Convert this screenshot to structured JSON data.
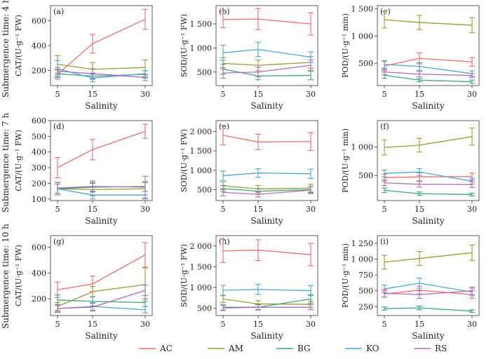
{
  "figure": {
    "row_labels": [
      "Submergence time: 4 h",
      "Submergence time: 7 h",
      "Submergence time: 10 h"
    ]
  },
  "legend": {
    "items": [
      {
        "name": "AC",
        "color": "#f26b6b"
      },
      {
        "name": "AM",
        "color": "#9b9b2f"
      },
      {
        "name": "BG",
        "color": "#3aa874"
      },
      {
        "name": "KO",
        "color": "#4aa6d6"
      },
      {
        "name": "RS",
        "color": "#b06bbd"
      }
    ]
  },
  "chart_data": [
    {
      "panel": "(a)",
      "type": "line",
      "x": [
        5,
        15,
        30
      ],
      "xlabel": "Salinity",
      "ylabel": "CAT/(U·g⁻¹ FW)",
      "ylim": [
        80,
        720
      ],
      "yticks": [
        200,
        400,
        600
      ],
      "ytick_labels": [
        "200",
        "400",
        "600"
      ],
      "series": [
        {
          "name": "AC",
          "values": [
            170,
            415,
            610
          ],
          "err": [
            40,
            75,
            80
          ]
        },
        {
          "name": "AM",
          "values": [
            250,
            210,
            225
          ],
          "err": [
            70,
            55,
            60
          ]
        },
        {
          "name": "BG",
          "values": [
            175,
            155,
            170
          ],
          "err": [
            30,
            25,
            30
          ]
        },
        {
          "name": "KO",
          "values": [
            215,
            140,
            175
          ],
          "err": [
            65,
            30,
            25
          ]
        },
        {
          "name": "RS",
          "values": [
            195,
            175,
            145
          ],
          "err": [
            30,
            40,
            25
          ]
        }
      ]
    },
    {
      "panel": "(b)",
      "type": "line",
      "x": [
        5,
        15,
        30
      ],
      "xlabel": "",
      "ylabel": "SOD/(U·g⁻¹ FW)",
      "ylim": [
        220,
        1880
      ],
      "yticks": [
        500,
        1000,
        1500
      ],
      "ytick_labels": [
        "500",
        "1 000",
        "1 500"
      ],
      "series": [
        {
          "name": "AC",
          "values": [
            1590,
            1600,
            1500
          ],
          "err": [
            170,
            220,
            230
          ]
        },
        {
          "name": "AM",
          "values": [
            680,
            640,
            700
          ],
          "err": [
            120,
            110,
            120
          ]
        },
        {
          "name": "BG",
          "values": [
            560,
            420,
            430
          ],
          "err": [
            100,
            80,
            90
          ]
        },
        {
          "name": "KO",
          "values": [
            900,
            970,
            810
          ],
          "err": [
            160,
            150,
            110
          ]
        },
        {
          "name": "RS",
          "values": [
            480,
            500,
            640
          ],
          "err": [
            110,
            100,
            110
          ]
        }
      ]
    },
    {
      "panel": "(c)",
      "type": "line",
      "x": [
        5,
        15,
        30
      ],
      "xlabel": "",
      "ylabel": "POD/(U·g⁻¹ min)",
      "ylim": [
        90,
        1560
      ],
      "yticks": [
        500,
        1000,
        1500
      ],
      "ytick_labels": [
        "500",
        "1 000",
        "1 500"
      ],
      "series": [
        {
          "name": "AC",
          "values": [
            450,
            590,
            525
          ],
          "err": [
            80,
            100,
            80
          ]
        },
        {
          "name": "AM",
          "values": [
            1300,
            1250,
            1200
          ],
          "err": [
            150,
            130,
            140
          ]
        },
        {
          "name": "BG",
          "values": [
            280,
            190,
            160
          ],
          "err": [
            60,
            30,
            30
          ]
        },
        {
          "name": "KO",
          "values": [
            480,
            440,
            310
          ],
          "err": [
            70,
            70,
            50
          ]
        },
        {
          "name": "RS",
          "values": [
            340,
            300,
            275
          ],
          "err": [
            50,
            50,
            40
          ]
        }
      ]
    },
    {
      "panel": "(d)",
      "type": "line",
      "x": [
        5,
        15,
        30
      ],
      "xlabel": "",
      "ylabel": "CAT/(U·g⁻¹ FW)",
      "ylim": [
        90,
        600
      ],
      "yticks": [
        100,
        200,
        300,
        400,
        500,
        600
      ],
      "ytick_labels": [
        "100",
        "200",
        "300",
        "400",
        "500",
        "600"
      ],
      "series": [
        {
          "name": "AC",
          "values": [
            300,
            415,
            532
          ],
          "err": [
            65,
            65,
            45
          ]
        },
        {
          "name": "AM",
          "values": [
            165,
            160,
            165
          ],
          "err": [
            40,
            40,
            40
          ]
        },
        {
          "name": "BG",
          "values": [
            165,
            175,
            180
          ],
          "err": [
            30,
            30,
            30
          ]
        },
        {
          "name": "KO",
          "values": [
            165,
            125,
            125
          ],
          "err": [
            30,
            25,
            25
          ]
        },
        {
          "name": "RS",
          "values": [
            170,
            180,
            175
          ],
          "err": [
            35,
            35,
            70
          ]
        }
      ]
    },
    {
      "panel": "(e)",
      "type": "line",
      "x": [
        5,
        15,
        30
      ],
      "xlabel": "",
      "ylabel": "SOD/(U·g⁻¹ FW)",
      "ylim": [
        220,
        2280
      ],
      "yticks": [
        500,
        1000,
        1500,
        2000
      ],
      "ytick_labels": [
        "500",
        "1 000",
        "1 500",
        "2 000"
      ],
      "series": [
        {
          "name": "AC",
          "values": [
            1900,
            1730,
            1740
          ],
          "err": [
            250,
            200,
            230
          ]
        },
        {
          "name": "AM",
          "values": [
            600,
            520,
            540
          ],
          "err": [
            100,
            90,
            100
          ]
        },
        {
          "name": "BG",
          "values": [
            530,
            460,
            500
          ],
          "err": [
            80,
            70,
            80
          ]
        },
        {
          "name": "KO",
          "values": [
            860,
            930,
            910
          ],
          "err": [
            120,
            110,
            120
          ]
        },
        {
          "name": "RS",
          "values": [
            430,
            380,
            490
          ],
          "err": [
            90,
            70,
            90
          ]
        }
      ]
    },
    {
      "panel": "(f)",
      "type": "line",
      "x": [
        5,
        15,
        30
      ],
      "xlabel": "",
      "ylabel": "POD/(U·g⁻¹ min)",
      "ylim": [
        60,
        1460
      ],
      "yticks": [
        500,
        1000
      ],
      "ytick_labels": [
        "500",
        "1 000"
      ],
      "series": [
        {
          "name": "AC",
          "values": [
            460,
            475,
            480
          ],
          "err": [
            60,
            70,
            60
          ]
        },
        {
          "name": "AM",
          "values": [
            990,
            1030,
            1180
          ],
          "err": [
            130,
            120,
            150
          ]
        },
        {
          "name": "BG",
          "values": [
            240,
            180,
            165
          ],
          "err": [
            40,
            30,
            25
          ]
        },
        {
          "name": "KO",
          "values": [
            535,
            560,
            400
          ],
          "err": [
            60,
            60,
            50
          ]
        },
        {
          "name": "RS",
          "values": [
            370,
            345,
            340
          ],
          "err": [
            50,
            50,
            50
          ]
        }
      ]
    },
    {
      "panel": "(g)",
      "type": "line",
      "x": [
        5,
        15,
        30
      ],
      "xlabel": "",
      "ylabel": "CAT/(U·g⁻¹ FW)",
      "ylim": [
        70,
        690
      ],
      "yticks": [
        200,
        400,
        600
      ],
      "ytick_labels": [
        "200",
        "400",
        "600"
      ],
      "series": [
        {
          "name": "AC",
          "values": [
            270,
            315,
            540
          ],
          "err": [
            60,
            60,
            95
          ]
        },
        {
          "name": "AM",
          "values": [
            140,
            255,
            310
          ],
          "err": [
            30,
            40,
            130
          ]
        },
        {
          "name": "BG",
          "values": [
            190,
            180,
            170
          ],
          "err": [
            40,
            35,
            30
          ]
        },
        {
          "name": "KO",
          "values": [
            125,
            140,
            115
          ],
          "err": [
            25,
            30,
            25
          ]
        },
        {
          "name": "RS",
          "values": [
            125,
            135,
            265
          ],
          "err": [
            30,
            30,
            40
          ]
        }
      ]
    },
    {
      "panel": "(h)",
      "type": "line",
      "x": [
        5,
        15,
        30
      ],
      "xlabel": "",
      "ylabel": "SOD/(U·g⁻¹ FW)",
      "ylim": [
        320,
        2250
      ],
      "yticks": [
        500,
        1000,
        1500,
        2000
      ],
      "ytick_labels": [
        "500",
        "1 000",
        "1 500",
        "2 000"
      ],
      "series": [
        {
          "name": "AC",
          "values": [
            1880,
            1900,
            1790
          ],
          "err": [
            280,
            250,
            270
          ]
        },
        {
          "name": "AM",
          "values": [
            720,
            600,
            590
          ],
          "err": [
            80,
            80,
            80
          ]
        },
        {
          "name": "BG",
          "values": [
            520,
            520,
            720
          ],
          "err": [
            70,
            70,
            100
          ]
        },
        {
          "name": "KO",
          "values": [
            930,
            950,
            920
          ],
          "err": [
            120,
            120,
            120
          ]
        },
        {
          "name": "RS",
          "values": [
            500,
            520,
            520
          ],
          "err": [
            60,
            60,
            60
          ]
        }
      ]
    },
    {
      "panel": "(i)",
      "type": "line",
      "x": [
        5,
        15,
        30
      ],
      "xlabel": "",
      "ylabel": "POD/(U·g⁻¹ min)",
      "ylim": [
        110,
        1370
      ],
      "yticks": [
        250,
        500,
        750,
        1000,
        1250
      ],
      "ytick_labels": [
        "250",
        "500",
        "750",
        "1 000",
        "1 250"
      ],
      "series": [
        {
          "name": "AC",
          "values": [
            450,
            510,
            440
          ],
          "err": [
            50,
            60,
            60
          ]
        },
        {
          "name": "AM",
          "values": [
            950,
            1010,
            1100
          ],
          "err": [
            110,
            110,
            120
          ]
        },
        {
          "name": "BG",
          "values": [
            220,
            230,
            180
          ],
          "err": [
            25,
            30,
            20
          ]
        },
        {
          "name": "KO",
          "values": [
            530,
            620,
            480
          ],
          "err": [
            60,
            80,
            60
          ]
        },
        {
          "name": "RS",
          "values": [
            460,
            440,
            500
          ],
          "err": [
            60,
            60,
            60
          ]
        }
      ]
    }
  ]
}
